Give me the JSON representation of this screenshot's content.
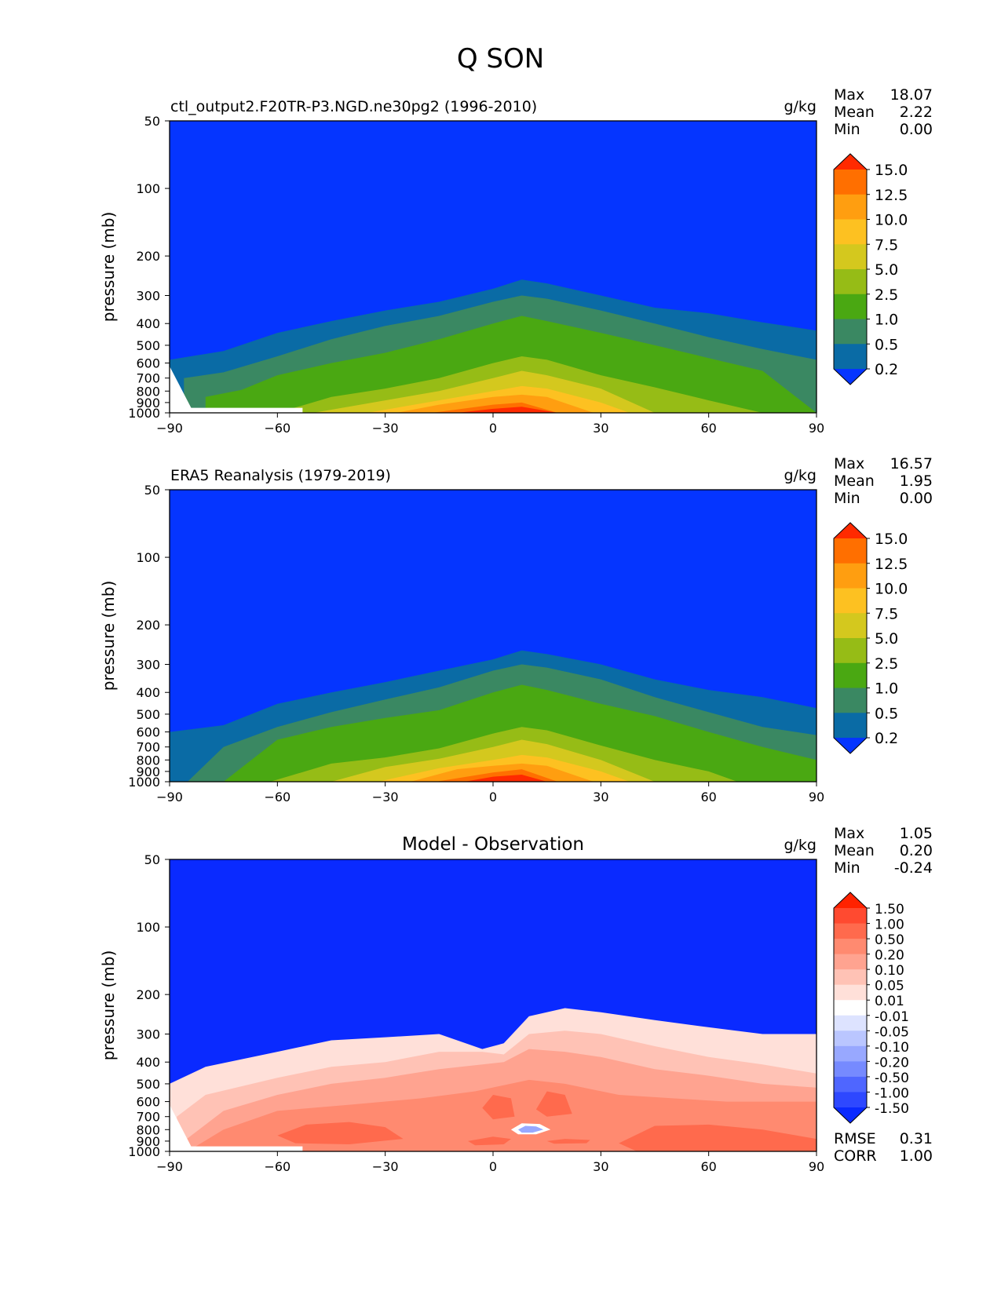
{
  "figure": {
    "title": "Q SON"
  },
  "chart_data": [
    {
      "type": "contourf",
      "title": "ctl_output2.F20TR-P3.NGD.ne30pg2 (1996-2010)",
      "units": "g/kg",
      "xlabel": "",
      "ylabel": "pressure (mb)",
      "xlim": [
        -90,
        90
      ],
      "ylim": [
        1000,
        50
      ],
      "xticks": [
        "−90",
        "−60",
        "−30",
        "0",
        "30",
        "60",
        "90"
      ],
      "yticks": [
        "50",
        "100",
        "200",
        "300",
        "400",
        "500",
        "600",
        "700",
        "800",
        "900",
        "1000"
      ],
      "stats": [
        {
          "label": "Max",
          "value": "18.07"
        },
        {
          "label": "Mean",
          "value": "2.22"
        },
        {
          "label": "Min",
          "value": "0.00"
        }
      ],
      "colorbar": {
        "tick_labels": [
          "15.0",
          "12.5",
          "10.0",
          "7.5",
          "5.0",
          "2.5",
          "1.0",
          "0.5",
          "0.2"
        ],
        "colors": [
          "#FF2A00",
          "#FF6F00",
          "#FF9E10",
          "#FDC121",
          "#D4C81E",
          "#96BC16",
          "#4AA812",
          "#3A8862",
          "#0A6BA5",
          "#0535FF"
        ]
      },
      "contour_levels_max_pressure_mb": [
        {
          "level": "0.2",
          "lat": [
            -90,
            -75,
            -60,
            -45,
            -30,
            -15,
            0,
            8,
            15,
            30,
            45,
            60,
            75,
            90
          ],
          "p": [
            580,
            530,
            440,
            390,
            350,
            320,
            280,
            255,
            265,
            300,
            340,
            360,
            395,
            430
          ]
        },
        {
          "level": "0.5",
          "lat": [
            -86,
            -75,
            -60,
            -45,
            -30,
            -15,
            0,
            8,
            15,
            30,
            45,
            60,
            75,
            90
          ],
          "p": [
            700,
            660,
            560,
            470,
            410,
            370,
            320,
            300,
            310,
            350,
            400,
            460,
            520,
            580
          ]
        },
        {
          "level": "1.0",
          "lat": [
            -80,
            -70,
            -60,
            -45,
            -30,
            -15,
            0,
            8,
            15,
            30,
            45,
            60,
            75,
            90
          ],
          "p": [
            850,
            790,
            680,
            600,
            540,
            470,
            400,
            370,
            390,
            440,
            500,
            570,
            650,
            1000
          ]
        },
        {
          "level": "2.5",
          "lat": [
            -60,
            -45,
            -30,
            -15,
            0,
            8,
            15,
            30,
            45,
            60,
            75
          ],
          "p": [
            1000,
            850,
            780,
            700,
            600,
            560,
            580,
            680,
            770,
            880,
            1000
          ]
        },
        {
          "level": "5.0",
          "lat": [
            -50,
            -30,
            -15,
            0,
            8,
            15,
            30,
            45
          ],
          "p": [
            1000,
            880,
            800,
            700,
            650,
            680,
            780,
            1000
          ]
        },
        {
          "level": "7.5",
          "lat": [
            -35,
            -15,
            0,
            8,
            15,
            30,
            38
          ],
          "p": [
            1000,
            880,
            800,
            760,
            780,
            900,
            1000
          ]
        },
        {
          "level": "10.0",
          "lat": [
            -27,
            -15,
            0,
            8,
            15,
            28
          ],
          "p": [
            1000,
            920,
            850,
            830,
            850,
            1000
          ]
        },
        {
          "level": "12.5",
          "lat": [
            -17,
            0,
            8,
            18
          ],
          "p": [
            1000,
            920,
            900,
            1000
          ]
        },
        {
          "level": "15.0",
          "lat": [
            -10,
            0,
            8,
            18
          ],
          "p": [
            1000,
            960,
            940,
            1000
          ]
        }
      ]
    },
    {
      "type": "contourf",
      "title": "ERA5 Reanalysis (1979-2019)",
      "units": "g/kg",
      "xlabel": "",
      "ylabel": "pressure (mb)",
      "xlim": [
        -90,
        90
      ],
      "ylim": [
        1000,
        50
      ],
      "xticks": [
        "−90",
        "−60",
        "−30",
        "0",
        "30",
        "60",
        "90"
      ],
      "yticks": [
        "50",
        "100",
        "200",
        "300",
        "400",
        "500",
        "600",
        "700",
        "800",
        "900",
        "1000"
      ],
      "stats": [
        {
          "label": "Max",
          "value": "16.57"
        },
        {
          "label": "Mean",
          "value": "1.95"
        },
        {
          "label": "Min",
          "value": "0.00"
        }
      ],
      "colorbar": {
        "tick_labels": [
          "15.0",
          "12.5",
          "10.0",
          "7.5",
          "5.0",
          "2.5",
          "1.0",
          "0.5",
          "0.2"
        ],
        "colors": [
          "#FF2A00",
          "#FF6F00",
          "#FF9E10",
          "#FDC121",
          "#D4C81E",
          "#96BC16",
          "#4AA812",
          "#3A8862",
          "#0A6BA5",
          "#0535FF"
        ]
      },
      "contour_levels_max_pressure_mb": [
        {
          "level": "0.2",
          "lat": [
            -90,
            -75,
            -60,
            -45,
            -30,
            -15,
            0,
            8,
            15,
            30,
            45,
            60,
            75,
            90
          ],
          "p": [
            600,
            560,
            450,
            400,
            360,
            320,
            285,
            260,
            270,
            300,
            350,
            390,
            420,
            470
          ]
        },
        {
          "level": "0.5",
          "lat": [
            -85,
            -75,
            -60,
            -45,
            -30,
            -15,
            0,
            8,
            15,
            30,
            45,
            60,
            75,
            90
          ],
          "p": [
            1000,
            700,
            570,
            490,
            430,
            380,
            320,
            300,
            310,
            350,
            420,
            490,
            570,
            620
          ]
        },
        {
          "level": "1.0",
          "lat": [
            -75,
            -60,
            -45,
            -30,
            -15,
            0,
            8,
            15,
            30,
            45,
            60,
            75,
            90
          ],
          "p": [
            1000,
            650,
            570,
            520,
            480,
            400,
            370,
            390,
            450,
            510,
            600,
            700,
            800
          ]
        },
        {
          "level": "2.5",
          "lat": [
            -62,
            -45,
            -30,
            -15,
            0,
            8,
            15,
            30,
            45,
            60,
            68
          ],
          "p": [
            1000,
            830,
            780,
            710,
            610,
            570,
            590,
            690,
            800,
            900,
            1000
          ]
        },
        {
          "level": "5.0",
          "lat": [
            -45,
            -30,
            -15,
            0,
            8,
            15,
            30,
            45
          ],
          "p": [
            1000,
            860,
            790,
            700,
            650,
            680,
            800,
            1000
          ]
        },
        {
          "level": "7.5",
          "lat": [
            -32,
            -15,
            0,
            8,
            15,
            30,
            38
          ],
          "p": [
            1000,
            870,
            800,
            760,
            780,
            900,
            1000
          ]
        },
        {
          "level": "10.0",
          "lat": [
            -23,
            -10,
            0,
            8,
            15,
            28
          ],
          "p": [
            1000,
            880,
            850,
            830,
            850,
            1000
          ]
        },
        {
          "level": "12.5",
          "lat": [
            -16,
            0,
            8,
            18
          ],
          "p": [
            1000,
            910,
            880,
            1000
          ]
        },
        {
          "level": "15.0",
          "lat": [
            -8,
            0,
            8,
            15
          ],
          "p": [
            1000,
            950,
            930,
            1000
          ]
        }
      ]
    },
    {
      "type": "contourf",
      "title": "Model - Observation",
      "units": "g/kg",
      "xlabel": "",
      "ylabel": "pressure (mb)",
      "xlim": [
        -90,
        90
      ],
      "ylim": [
        1000,
        50
      ],
      "xticks": [
        "−90",
        "−60",
        "−30",
        "0",
        "30",
        "60",
        "90"
      ],
      "yticks": [
        "50",
        "100",
        "200",
        "300",
        "400",
        "500",
        "600",
        "700",
        "800",
        "900",
        "1000"
      ],
      "stats": [
        {
          "label": "Max",
          "value": "1.05"
        },
        {
          "label": "Mean",
          "value": "0.20"
        },
        {
          "label": "Min",
          "value": "-0.24"
        }
      ],
      "bottom_stats": [
        {
          "label": "RMSE",
          "value": "0.31"
        },
        {
          "label": "CORR",
          "value": "1.00"
        }
      ],
      "colorbar": {
        "tick_labels": [
          "1.50",
          "1.00",
          "0.50",
          "0.20",
          "0.10",
          "0.05",
          "0.01",
          "-0.01",
          "-0.05",
          "-0.10",
          "-0.20",
          "-0.50",
          "-1.00",
          "-1.50"
        ],
        "colors": [
          "#FF2200",
          "#FF4A30",
          "#FF6A4D",
          "#FF8A70",
          "#FFA390",
          "#FFC2B5",
          "#FFE0D9",
          "#FFFFFF",
          "#DDE3FF",
          "#BAC6FF",
          "#98A8FF",
          "#768AFF",
          "#4F66FF",
          "#2E48FF",
          "#0A2AFF"
        ]
      },
      "contour_levels_max_pressure_mb": [
        {
          "level": "0.01",
          "lat": [
            -90,
            -80,
            -60,
            -45,
            -30,
            -15,
            -3,
            3,
            10,
            20,
            30,
            45,
            60,
            75,
            90
          ],
          "p": [
            500,
            420,
            360,
            320,
            310,
            300,
            350,
            330,
            250,
            230,
            240,
            260,
            280,
            300,
            300
          ]
        },
        {
          "level": "0.05",
          "lat": [
            -88,
            -80,
            -60,
            -45,
            -30,
            -15,
            -3,
            3,
            10,
            20,
            30,
            45,
            60,
            75,
            90
          ],
          "p": [
            700,
            560,
            470,
            420,
            400,
            360,
            360,
            370,
            300,
            290,
            300,
            340,
            380,
            410,
            450
          ]
        },
        {
          "level": "0.10",
          "lat": [
            -86,
            -75,
            -60,
            -45,
            -30,
            -15,
            -3,
            3,
            10,
            20,
            30,
            45,
            60,
            75,
            90
          ],
          "p": [
            900,
            660,
            560,
            500,
            470,
            430,
            410,
            400,
            350,
            360,
            380,
            430,
            460,
            500,
            520
          ]
        },
        {
          "level": "0.20",
          "lat": [
            -85,
            -75,
            -60,
            -40,
            -20,
            -5,
            10,
            20,
            35,
            50,
            65,
            80,
            90
          ],
          "p": [
            1000,
            800,
            660,
            620,
            580,
            540,
            480,
            500,
            560,
            580,
            600,
            600,
            600
          ]
        }
      ]
    }
  ]
}
